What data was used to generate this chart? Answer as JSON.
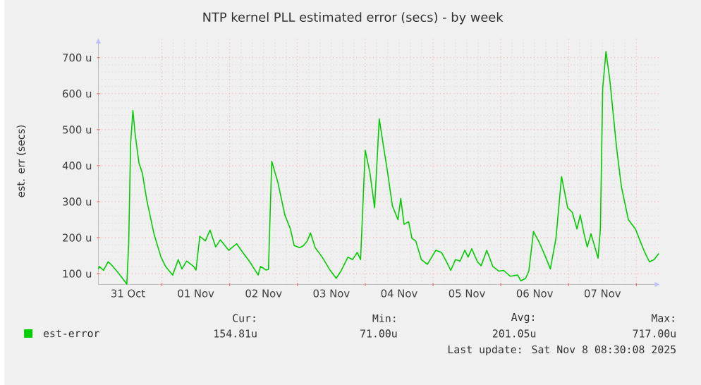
{
  "chart_data": {
    "type": "line",
    "title": "NTP kernel PLL estimated error (secs) - by week",
    "ylabel": "est. err (secs)",
    "xlim": [
      "2025-10-31T01:30",
      "2025-11-08T08:30"
    ],
    "xticks": [
      {
        "value": "2025-11-01T00:00",
        "label": null
      },
      {
        "value": "2025-11-02T00:00",
        "label": null
      },
      {
        "value": "2025-11-03T00:00",
        "label": null
      },
      {
        "value": "2025-11-04T00:00",
        "label": null
      },
      {
        "value": "2025-11-05T00:00",
        "label": null
      },
      {
        "value": "2025-11-06T00:00",
        "label": null
      },
      {
        "value": "2025-11-07T00:00",
        "label": null
      },
      {
        "value": "2025-11-08T00:00",
        "label": null
      },
      {
        "value": "2025-10-31T12:00",
        "label": "31 Oct"
      },
      {
        "value": "2025-11-01T12:00",
        "label": "01 Nov"
      },
      {
        "value": "2025-11-02T12:00",
        "label": "02 Nov"
      },
      {
        "value": "2025-11-03T12:00",
        "label": "03 Nov"
      },
      {
        "value": "2025-11-04T12:00",
        "label": "04 Nov"
      },
      {
        "value": "2025-11-05T12:00",
        "label": "05 Nov"
      },
      {
        "value": "2025-11-06T12:00",
        "label": "06 Nov"
      },
      {
        "value": "2025-11-07T12:00",
        "label": "07 Nov"
      }
    ],
    "ylim": [
      70,
      755
    ],
    "yticks": [
      {
        "value": 100,
        "label": "100 u"
      },
      {
        "value": 200,
        "label": "200 u"
      },
      {
        "value": 300,
        "label": "300 u"
      },
      {
        "value": 400,
        "label": "400 u"
      },
      {
        "value": 500,
        "label": "500 u"
      },
      {
        "value": 600,
        "label": "600 u"
      },
      {
        "value": 700,
        "label": "700 u"
      }
    ],
    "grid": true,
    "legend": "bottom",
    "marker": "none",
    "line_style": "solid",
    "annotations": [
      "Cur:",
      "Min:",
      "Avg:",
      "Max:",
      "154.81u",
      "71.00u",
      "201.05u",
      "717.00u",
      "Last update: Sat Nov 8 08:30:08 2025"
    ],
    "series": [
      {
        "name": "est-error",
        "color": "#00cc00",
        "x": [
          "2025-10-31T01:30",
          "2025-10-31T01:51",
          "2025-10-31T03:19",
          "2025-10-31T04:58",
          "2025-10-31T05:58",
          "2025-10-31T08:46",
          "2025-10-31T11:35",
          "2025-10-31T12:15",
          "2025-10-31T12:55",
          "2025-10-31T13:44",
          "2025-10-31T14:34",
          "2025-10-31T15:53",
          "2025-10-31T17:03",
          "2025-10-31T18:42",
          "2025-10-31T21:11",
          "2025-10-31T23:40",
          "2025-11-01T01:19",
          "2025-11-01T03:49",
          "2025-11-01T05:47",
          "2025-11-01T07:07",
          "2025-11-01T08:46",
          "2025-11-01T11:15",
          "2025-11-01T12:05",
          "2025-11-01T13:25",
          "2025-11-01T15:23",
          "2025-11-01T17:03",
          "2025-11-01T19:02",
          "2025-11-01T20:41",
          "2025-11-01T23:40",
          "2025-11-02T02:29",
          "2025-11-02T04:38",
          "2025-11-02T07:07",
          "2025-11-02T10:06",
          "2025-11-02T10:55",
          "2025-11-02T12:55",
          "2025-11-02T13:44",
          "2025-11-02T14:54",
          "2025-11-02T17:03",
          "2025-11-02T19:32",
          "2025-11-02T21:31",
          "2025-11-02T22:50",
          "2025-11-03T00:50",
          "2025-11-03T02:09",
          "2025-11-03T03:29",
          "2025-11-03T04:38",
          "2025-11-03T06:17",
          "2025-11-03T08:46",
          "2025-11-03T11:16",
          "2025-11-03T13:44",
          "2025-11-03T15:23",
          "2025-11-03T17:53",
          "2025-11-03T19:32",
          "2025-11-03T21:11",
          "2025-11-03T22:21",
          "2025-11-04T00:00",
          "2025-11-04T01:40",
          "2025-11-04T03:19",
          "2025-11-04T04:58",
          "2025-11-04T06:37",
          "2025-11-04T07:57",
          "2025-11-04T09:36",
          "2025-11-04T11:35",
          "2025-11-04T12:35",
          "2025-11-04T13:44",
          "2025-11-04T15:23",
          "2025-11-04T16:33",
          "2025-11-04T17:53",
          "2025-11-04T19:52",
          "2025-11-04T22:01",
          "2025-11-05T01:00",
          "2025-11-05T02:59",
          "2025-11-05T04:38",
          "2025-11-05T06:17",
          "2025-11-05T07:57",
          "2025-11-05T09:36",
          "2025-11-05T11:16",
          "2025-11-05T12:25",
          "2025-11-05T13:44",
          "2025-11-05T15:44",
          "2025-11-05T17:03",
          "2025-11-05T19:02",
          "2025-11-05T21:11",
          "2025-11-05T23:20",
          "2025-11-06T01:00",
          "2025-11-06T03:19",
          "2025-11-06T05:58",
          "2025-11-06T07:07",
          "2025-11-06T08:46",
          "2025-11-06T09:56",
          "2025-11-06T11:35",
          "2025-11-06T13:44",
          "2025-11-06T15:53",
          "2025-11-06T17:33",
          "2025-11-06T19:32",
          "2025-11-06T21:31",
          "2025-11-06T23:40",
          "2025-11-07T01:20",
          "2025-11-07T02:59",
          "2025-11-07T04:08",
          "2025-11-07T05:28",
          "2025-11-07T06:37",
          "2025-11-07T07:57",
          "2025-11-07T10:26",
          "2025-11-07T11:16",
          "2025-11-07T12:05",
          "2025-11-07T13:15",
          "2025-11-07T14:34",
          "2025-11-07T17:03",
          "2025-11-07T18:43",
          "2025-11-07T21:11",
          "2025-11-07T23:40",
          "2025-11-08T01:20",
          "2025-11-08T02:59",
          "2025-11-08T04:38",
          "2025-11-08T06:17",
          "2025-11-08T07:57"
        ],
        "values": [
          113,
          120,
          109,
          133,
          126,
          100,
          71,
          185,
          459,
          553,
          485,
          407,
          380,
          302,
          211,
          146,
          120,
          96,
          139,
          113,
          135,
          120,
          110,
          204,
          191,
          221,
          174,
          194,
          165,
          183,
          159,
          133,
          96,
          120,
          110,
          112,
          412,
          354,
          263,
          224,
          178,
          172,
          178,
          191,
          213,
          172,
          146,
          113,
          87,
          107,
          146,
          139,
          159,
          139,
          443,
          380,
          283,
          530,
          446,
          380,
          289,
          250,
          309,
          237,
          244,
          198,
          191,
          139,
          126,
          165,
          159,
          135,
          109,
          139,
          135,
          165,
          146,
          169,
          133,
          122,
          165,
          120,
          107,
          109,
          93,
          96,
          80,
          87,
          107,
          217,
          185,
          146,
          113,
          198,
          370,
          283,
          270,
          224,
          263,
          211,
          174,
          211,
          143,
          224,
          615,
          717,
          641,
          446,
          341,
          250,
          224,
          191,
          159,
          133,
          139,
          156
        ]
      }
    ]
  }
}
